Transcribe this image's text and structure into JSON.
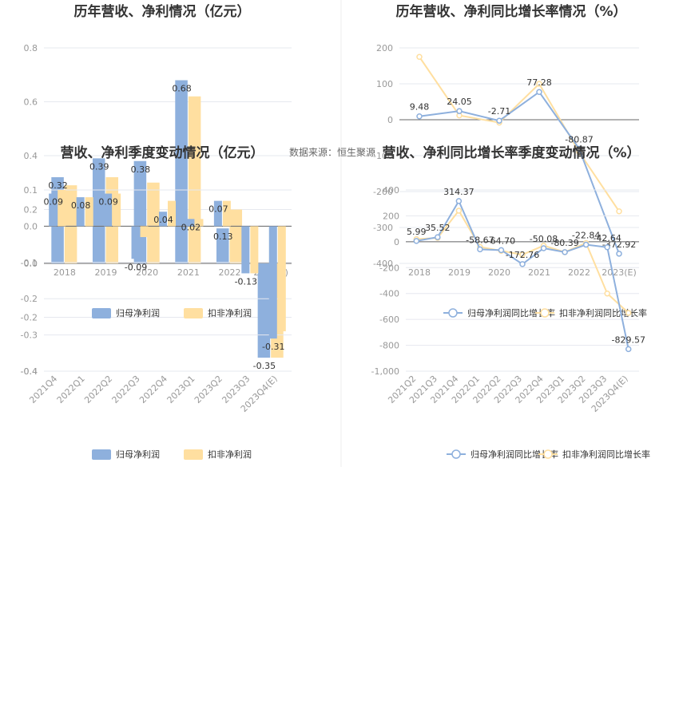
{
  "source_note": "数据来源：恒生聚源",
  "colors": {
    "primary": "#8eb0dd",
    "secondary": "#ffdfa0",
    "grid": "#e6e8ef",
    "axis": "#666666"
  },
  "chart_data": [
    {
      "type": "bar",
      "title": "历年营收、净利情况（亿元）",
      "categories": [
        "2018",
        "2019",
        "2020",
        "2021",
        "2022",
        "2023(E)"
      ],
      "series": [
        {
          "name": "归母净利润",
          "values": [
            0.32,
            0.39,
            0.38,
            0.68,
            0.13,
            -0.35
          ]
        },
        {
          "name": "扣非净利润",
          "values": [
            0.29,
            0.32,
            0.3,
            0.62,
            0.2,
            -0.35
          ]
        }
      ],
      "data_labels": [
        "0.32",
        "0.39",
        "0.38",
        "0.68",
        "0.13",
        "-0.35"
      ],
      "yticks": [
        "0.8",
        "0.6",
        "0.4",
        "0.2",
        "0.0",
        "-0.2",
        "-0.4"
      ],
      "ylim": [
        -0.4,
        0.8
      ],
      "legend_position": "bottom"
    },
    {
      "type": "line",
      "title": "历年营收、净利同比增长率情况（%）",
      "categories": [
        "2018",
        "2019",
        "2020",
        "2021",
        "2022",
        "2023(E)"
      ],
      "series": [
        {
          "name": "归母净利润同比增长率",
          "values": [
            9.48,
            24.05,
            -2.71,
            77.28,
            -80.87,
            -372.92
          ]
        },
        {
          "name": "扣非净利润同比增长率",
          "values": [
            175,
            12,
            -8,
            100,
            -90,
            -255
          ]
        }
      ],
      "data_labels": [
        "9.48",
        "24.05",
        "-2.71",
        "77.28",
        "-80.87",
        "-372.92"
      ],
      "yticks": [
        "200",
        "100",
        "0",
        "-100",
        "-200",
        "-300",
        "-400"
      ],
      "ylim": [
        -400,
        200
      ],
      "legend_position": "bottom"
    },
    {
      "type": "bar",
      "title": "营收、净利季度变动情况（亿元）",
      "categories": [
        "2021Q4",
        "2022Q1",
        "2022Q2",
        "2022Q3",
        "2022Q4",
        "2023Q1",
        "2023Q2",
        "2023Q3",
        "2023Q4(E)"
      ],
      "series": [
        {
          "name": "归母净利润",
          "values": [
            0.09,
            0.08,
            0.09,
            -0.09,
            0.04,
            0.02,
            0.07,
            -0.13,
            -0.31
          ]
        },
        {
          "name": "扣非净利润",
          "values": [
            0.1,
            0.08,
            0.09,
            -0.03,
            0.07,
            0.02,
            0.07,
            -0.13,
            -0.29
          ]
        }
      ],
      "data_labels": [
        "0.09",
        "0.08",
        "0.09",
        "-0.09",
        "0.04",
        "0.02",
        "0.07",
        "-0.13",
        "-0.31"
      ],
      "yticks": [
        "0.1",
        "0.0",
        "-0.1",
        "-0.2",
        "-0.3",
        "-0.4"
      ],
      "ylim": [
        -0.4,
        0.1
      ],
      "legend_position": "bottom"
    },
    {
      "type": "line",
      "title": "营收、净利同比增长率季度变动情况（%）",
      "categories": [
        "2021Q2",
        "2021Q3",
        "2021Q4",
        "2022Q1",
        "2022Q2",
        "2022Q3",
        "2022Q4",
        "2023Q1",
        "2023Q2",
        "2023Q3",
        "2023Q4(E)"
      ],
      "series": [
        {
          "name": "归母净利润同比增长率",
          "values": [
            5.99,
            35.52,
            314.37,
            -58.67,
            -64.7,
            -172.76,
            -50.08,
            -80.39,
            -22.84,
            -42.64,
            -829.57
          ]
        },
        {
          "name": "扣非净利润同比增长率",
          "values": [
            20,
            30,
            240,
            -40,
            -70,
            -100,
            -30,
            -80,
            -10,
            -400,
            -550
          ]
        }
      ],
      "data_labels": [
        "5.99",
        "35.52",
        "314.37",
        "-58.67",
        "-64.70",
        "-172.76",
        "-50.08",
        "-80.39",
        "-22.84",
        "-42.64",
        "-829.57"
      ],
      "yticks": [
        "400",
        "200",
        "0",
        "-200",
        "-400",
        "-600",
        "-800",
        "-1,000"
      ],
      "ylim": [
        -1000,
        400
      ],
      "legend_position": "bottom"
    }
  ]
}
